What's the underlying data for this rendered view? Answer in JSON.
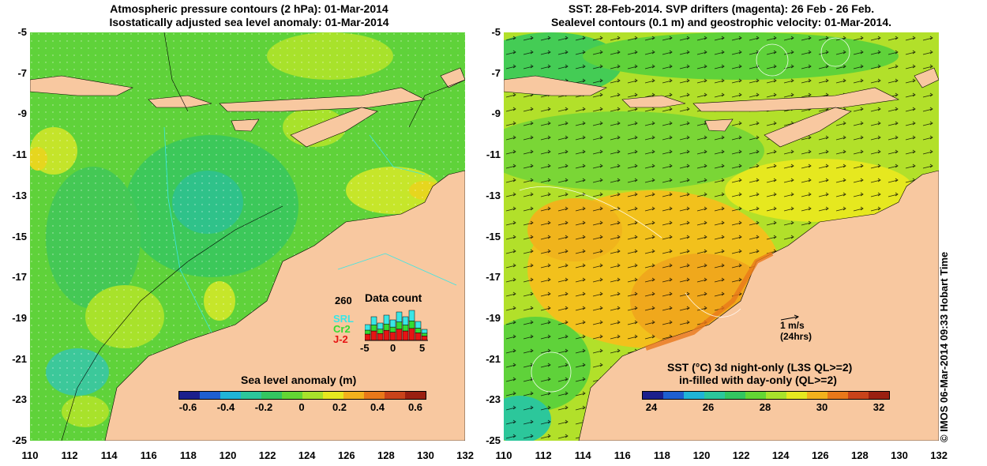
{
  "left_panel": {
    "title_line1": "Atmospheric pressure contours (2 hPa): 01-Mar-2014",
    "title_line2": "Isostatically adjusted sea level anomaly: 01-Mar-2014",
    "colorbar": {
      "title": "Sea level anomaly (m)",
      "ticks": [
        "-0.6",
        "-0.4",
        "-0.2",
        "0",
        "0.2",
        "0.4",
        "0.6"
      ],
      "colors": [
        "#1c1f8c",
        "#1e5fd0",
        "#20b4d6",
        "#2cc79b",
        "#33c660",
        "#63d634",
        "#a8e22b",
        "#e6e81f",
        "#f2b11c",
        "#e8781a",
        "#c9431a",
        "#9a1f10"
      ]
    },
    "data_count": {
      "title": "Data count",
      "max_label": "260",
      "x_ticks": [
        "-5",
        "0",
        "5"
      ],
      "missions": [
        {
          "name": "SRL",
          "color": "#39e6e6"
        },
        {
          "name": "Cr2",
          "color": "#32dc32"
        },
        {
          "name": "J-2",
          "color": "#e61414"
        }
      ]
    }
  },
  "right_panel": {
    "title_line1": "SST: 28-Feb-2014. SVP drifters (magenta): 26 Feb - 26 Feb.",
    "title_line2": "Sealevel contours (0.1 m) and geostrophic velocity: 01-Mar-2014.",
    "colorbar": {
      "title_line1": "SST (°C)  3d night-only (L3S QL>=2)",
      "title_line2": "in-filled with day-only (QL>=2)",
      "ticks": [
        "24",
        "26",
        "28",
        "30",
        "32"
      ],
      "colors": [
        "#1c1f8c",
        "#1e5fd0",
        "#20b4d6",
        "#2cc79b",
        "#33c660",
        "#63d634",
        "#a8e22b",
        "#e6e81f",
        "#f2b11c",
        "#e8781a",
        "#c9431a",
        "#9a1f10"
      ]
    },
    "scale_arrow": {
      "label": "1 m/s",
      "sublabel": "(24hrs)"
    }
  },
  "axes": {
    "lat_ticks": [
      "-5",
      "-7",
      "-9",
      "-11",
      "-13",
      "-15",
      "-17",
      "-19",
      "-21",
      "-23",
      "-25"
    ],
    "lon_ticks": [
      "110",
      "112",
      "114",
      "116",
      "118",
      "120",
      "122",
      "124",
      "126",
      "128",
      "130",
      "132"
    ]
  },
  "colors": {
    "land": "#f8c8a0",
    "background": "#ffffff"
  },
  "watermark": "© IMOS 06-Mar-2014 09:33 Hobart Time"
}
